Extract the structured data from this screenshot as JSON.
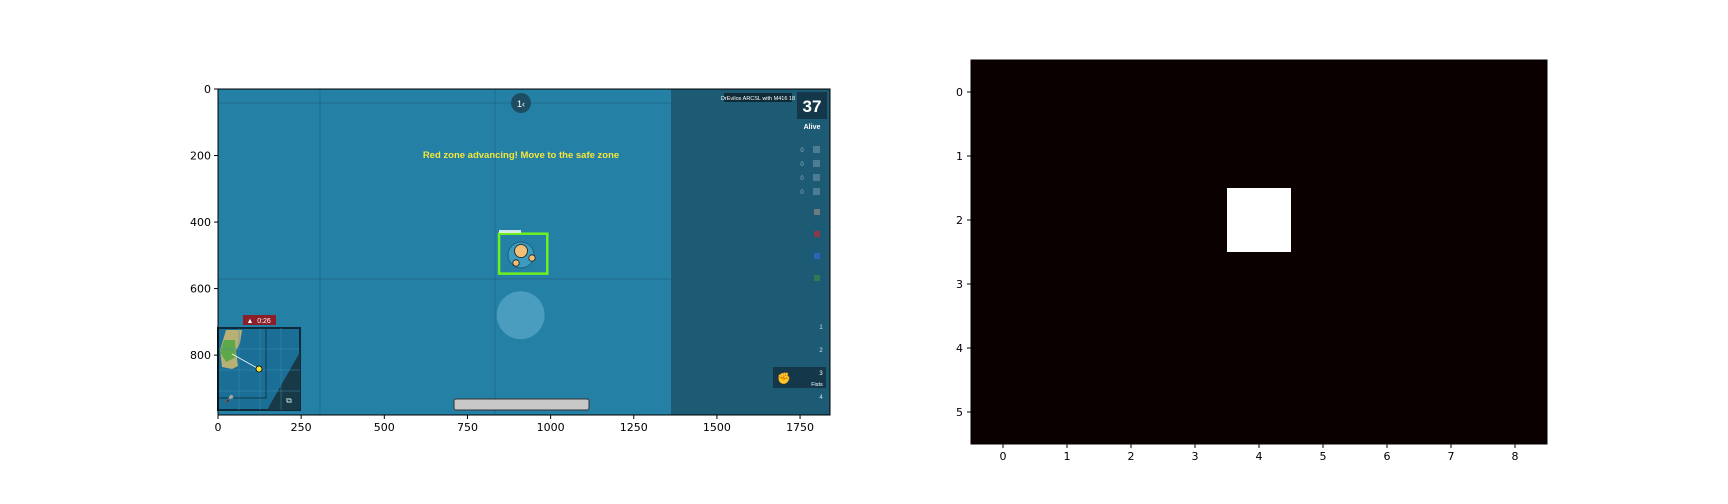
{
  "chart_data": [
    {
      "type": "image",
      "xlim": [
        0,
        1840
      ],
      "ylim": [
        980,
        0
      ],
      "xticks": [
        0,
        250,
        500,
        750,
        1000,
        1250,
        1500,
        1750
      ],
      "yticks": [
        0,
        200,
        400,
        600,
        800
      ],
      "screenshot": {
        "banner": "Red zone advancing! Move to the safe zone",
        "alive_count": "37",
        "alive_label": "Alive",
        "kill_feed": "DrEvilos ARCSL with M416 18",
        "timer": "0:26",
        "compass": "1‹",
        "slot_numbers": [
          "1",
          "2",
          "3",
          "4"
        ],
        "weapon_mode": "Fists",
        "resource_counts": [
          "0",
          "0",
          "0",
          "0"
        ],
        "colors": {
          "water": "#2580a6",
          "right_panel": "#1d5a73",
          "highlight_box": "#6ef01e",
          "banner_text": "#f5e63c",
          "zone_badge": "#8c1e2a"
        },
        "player_box": {
          "x": [
            845,
            990
          ],
          "y": [
            435,
            555
          ]
        },
        "shadow_circle": {
          "cx": 910,
          "cy": 680,
          "r": 72
        }
      }
    },
    {
      "type": "heatmap",
      "colormap": "hot",
      "shape": [
        6,
        9
      ],
      "xticks": [
        0,
        1,
        2,
        3,
        4,
        5,
        6,
        7,
        8
      ],
      "yticks": [
        0,
        1,
        2,
        3,
        4,
        5
      ],
      "values": [
        [
          0,
          0,
          0,
          0,
          0,
          0,
          0,
          0,
          0
        ],
        [
          0,
          0,
          0,
          0,
          0,
          0,
          0,
          0,
          0
        ],
        [
          0,
          0,
          0,
          0,
          1,
          0,
          0,
          0,
          0
        ],
        [
          0,
          0,
          0,
          0,
          0,
          0,
          0,
          0,
          0
        ],
        [
          0,
          0,
          0,
          0,
          0,
          0,
          0,
          0,
          0
        ],
        [
          0,
          0,
          0,
          0,
          0,
          0,
          0,
          0,
          0
        ]
      ]
    }
  ]
}
